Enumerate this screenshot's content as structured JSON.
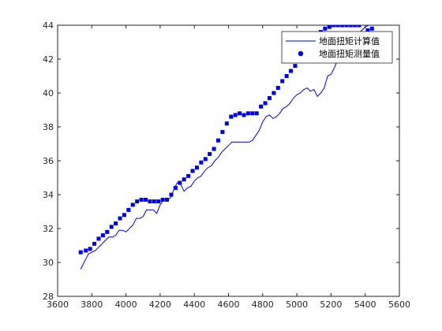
{
  "colors": {
    "series": "#0000ee",
    "axes": "#262626"
  },
  "chart_data": {
    "type": "line",
    "title": "",
    "xlabel": "",
    "ylabel": "",
    "xlim": [
      3600,
      5600
    ],
    "ylim": [
      28,
      44
    ],
    "x_ticks": [
      3600,
      3800,
      4000,
      4200,
      4400,
      4600,
      4800,
      5000,
      5200,
      5400,
      5600
    ],
    "y_ticks": [
      28,
      30,
      32,
      34,
      36,
      38,
      40,
      42,
      44
    ],
    "grid": false,
    "legend": "top-right",
    "series": [
      {
        "name": "地面扭矩计算值",
        "type": "line",
        "x": [
          3735,
          3760,
          3780,
          3800,
          3820,
          3840,
          3860,
          3880,
          3900,
          3920,
          3940,
          3960,
          3980,
          4000,
          4020,
          4040,
          4060,
          4080,
          4100,
          4120,
          4140,
          4160,
          4180,
          4200,
          4220,
          4240,
          4260,
          4280,
          4300,
          4320,
          4340,
          4360,
          4380,
          4400,
          4420,
          4440,
          4460,
          4480,
          4500,
          4520,
          4540,
          4560,
          4580,
          4600,
          4620,
          4640,
          4660,
          4680,
          4700,
          4720,
          4740,
          4760,
          4780,
          4800,
          4820,
          4840,
          4860,
          4880,
          4900,
          4920,
          4940,
          4960,
          4980,
          5000,
          5020,
          5040,
          5060,
          5080,
          5100,
          5120,
          5140,
          5160,
          5180,
          5200,
          5220,
          5240,
          5260,
          5280,
          5300,
          5320,
          5340,
          5360,
          5380,
          5400,
          5420,
          5440
        ],
        "y": [
          29.6,
          30.1,
          30.5,
          30.6,
          30.7,
          30.9,
          31.1,
          31.3,
          31.5,
          31.5,
          31.6,
          31.9,
          31.9,
          31.8,
          32.0,
          32.2,
          32.6,
          32.6,
          32.7,
          33.1,
          33.1,
          33.1,
          32.9,
          33.4,
          33.7,
          33.7,
          33.8,
          34.3,
          34.7,
          34.6,
          34.2,
          34.4,
          34.5,
          34.8,
          35.0,
          35.1,
          35.4,
          35.6,
          35.7,
          36.0,
          36.2,
          36.5,
          36.7,
          36.9,
          37.1,
          37.1,
          37.1,
          37.1,
          37.1,
          37.1,
          37.2,
          37.5,
          37.8,
          38.3,
          38.6,
          38.7,
          38.5,
          38.6,
          38.8,
          39.1,
          39.2,
          39.4,
          39.7,
          39.9,
          40.0,
          40.2,
          40.3,
          40.1,
          40.2,
          39.8,
          40.0,
          40.3,
          41.0,
          41.1,
          41.5,
          42.0,
          42.5,
          42.9,
          43.1,
          43.3,
          43.4,
          43.5,
          43.7,
          43.9,
          44.0,
          44.0
        ]
      },
      {
        "name": "地面扭矩测量值",
        "type": "scatter",
        "x": [
          3735,
          3765,
          3790,
          3815,
          3840,
          3865,
          3890,
          3915,
          3940,
          3965,
          3990,
          4015,
          4040,
          4065,
          4090,
          4115,
          4140,
          4165,
          4190,
          4215,
          4240,
          4265,
          4290,
          4315,
          4340,
          4365,
          4390,
          4415,
          4440,
          4465,
          4490,
          4515,
          4540,
          4565,
          4590,
          4615,
          4640,
          4665,
          4690,
          4715,
          4740,
          4765,
          4790,
          4815,
          4840,
          4865,
          4890,
          4915,
          4940,
          4965,
          4990,
          5015,
          5040,
          5065,
          5090,
          5115,
          5140,
          5165,
          5190,
          5215,
          5240,
          5265,
          5290,
          5315,
          5340,
          5365,
          5390,
          5415,
          5440
        ],
        "y": [
          30.6,
          30.7,
          30.8,
          31.1,
          31.4,
          31.6,
          31.8,
          32.1,
          32.3,
          32.6,
          32.8,
          33.1,
          33.4,
          33.6,
          33.7,
          33.7,
          33.6,
          33.6,
          33.6,
          33.7,
          33.7,
          34.0,
          34.4,
          34.7,
          34.9,
          35.1,
          35.4,
          35.6,
          35.9,
          36.1,
          36.4,
          36.7,
          37.2,
          37.7,
          38.2,
          38.6,
          38.7,
          38.8,
          38.7,
          38.8,
          38.8,
          38.8,
          39.2,
          39.4,
          39.7,
          40.0,
          40.3,
          40.7,
          41.0,
          41.3,
          41.6,
          42.0,
          42.3,
          42.6,
          43.0,
          43.3,
          43.6,
          43.8,
          43.9,
          44.0,
          44.0,
          44.0,
          44.0,
          44.0,
          44.0,
          44.0,
          43.5,
          43.7,
          43.8
        ]
      }
    ]
  }
}
